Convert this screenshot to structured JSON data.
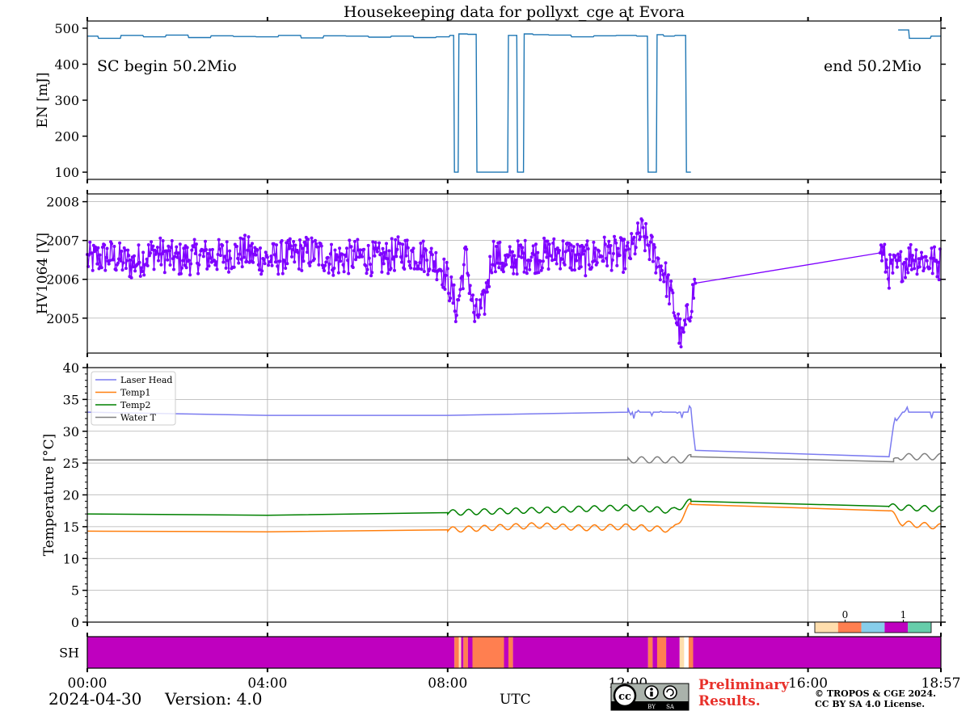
{
  "figure": {
    "title": "Housekeeping data for pollyxt_cge at Evora",
    "date": "2024-04-30",
    "version_label": "Version: 4.0",
    "x_label": "UTC",
    "x_ticks": [
      "00:00",
      "04:00",
      "08:00",
      "12:00",
      "16:00",
      "18:57"
    ],
    "preliminary_line1": "Preliminary",
    "preliminary_line2": "Results.",
    "copyright_line1": "© TROPOS & CGE 2024.",
    "copyright_line2": "CC BY SA 4.0 License.",
    "license_badge": "cc-by-sa-badge"
  },
  "chart_data": [
    {
      "type": "line",
      "panel": "energy",
      "ylabel": "EN [mJ]",
      "xlim_hours": [
        0,
        18.95
      ],
      "ylim": [
        80,
        520
      ],
      "yticks": [
        100,
        200,
        300,
        400,
        500
      ],
      "color": "#1f77b4",
      "annotation_left": "SC begin 50.2Mio",
      "annotation_right": "end 50.2Mio",
      "series": [
        {
          "name": "EN",
          "x": [
            0.0,
            0.5,
            1.0,
            1.5,
            2.0,
            2.5,
            3.0,
            3.5,
            4.0,
            4.5,
            5.0,
            5.5,
            6.0,
            6.5,
            7.0,
            7.5,
            8.0,
            8.1,
            8.2,
            8.3,
            8.6,
            8.7,
            8.8,
            8.9,
            9.0,
            9.2,
            9.5,
            9.6,
            9.8,
            10.0,
            10.5,
            11.0,
            11.5,
            12.0,
            12.4,
            12.5,
            12.6,
            12.7,
            12.9,
            13.2,
            13.4,
            17.8,
            18.0,
            18.5,
            18.95
          ],
          "y": [
            478,
            472,
            480,
            476,
            481,
            474,
            479,
            477,
            476,
            480,
            473,
            479,
            478,
            475,
            478,
            474,
            476,
            480,
            100,
            484,
            483,
            100,
            100,
            100,
            100,
            100,
            480,
            100,
            484,
            482,
            481,
            476,
            479,
            480,
            478,
            100,
            100,
            482,
            478,
            480,
            100,
            null,
            495,
            472,
            478
          ]
        }
      ]
    },
    {
      "type": "scatter",
      "panel": "hv1064",
      "ylabel": "HV1064 [V]",
      "xlim_hours": [
        0,
        18.95
      ],
      "ylim": [
        2004.1,
        2008.2
      ],
      "yticks": [
        2005,
        2006,
        2007,
        2008
      ],
      "color": "#7f00ff",
      "series": [
        {
          "name": "HV1064",
          "x": [
            0.0,
            0.5,
            1.0,
            1.5,
            2.0,
            2.5,
            3.0,
            3.5,
            4.0,
            4.5,
            5.0,
            5.5,
            6.0,
            6.5,
            7.0,
            7.5,
            7.8,
            8.0,
            8.2,
            8.4,
            8.6,
            8.8,
            9.0,
            9.3,
            9.6,
            10.0,
            10.5,
            11.0,
            11.5,
            12.0,
            12.3,
            12.5,
            12.8,
            13.0,
            13.2,
            13.5,
            17.6,
            17.8,
            18.0,
            18.3,
            18.6,
            18.95
          ],
          "y": [
            2006.5,
            2006.6,
            2006.4,
            2006.7,
            2006.5,
            2006.6,
            2006.6,
            2006.7,
            2006.5,
            2006.6,
            2006.7,
            2006.5,
            2006.6,
            2006.5,
            2006.7,
            2006.6,
            2006.4,
            2006.0,
            2005.2,
            2006.6,
            2005.0,
            2005.3,
            2006.7,
            2006.4,
            2006.6,
            2006.6,
            2006.7,
            2006.5,
            2006.7,
            2006.6,
            2007.2,
            2006.8,
            2006.2,
            2005.4,
            2004.4,
            2005.9,
            2006.8,
            2006.2,
            2006.3,
            2006.6,
            2006.5,
            2006.4
          ]
        }
      ]
    },
    {
      "type": "line",
      "panel": "temperature",
      "ylabel": "Temperature [°C]",
      "xlim_hours": [
        0,
        18.95
      ],
      "ylim": [
        0,
        40
      ],
      "yticks": [
        0,
        5,
        10,
        15,
        20,
        25,
        30,
        35,
        40
      ],
      "legend_position": "top-left",
      "series": [
        {
          "name": "Laser Head",
          "color": "#7b7bf0",
          "x": [
            0,
            4,
            8,
            12,
            13.4,
            13.5,
            17.8,
            17.9,
            18.1,
            18.95
          ],
          "y": [
            33,
            32.5,
            32.5,
            33,
            33,
            27,
            26,
            31,
            33,
            33
          ]
        },
        {
          "name": "Temp1",
          "color": "#ff7f0e",
          "x": [
            0,
            4,
            8,
            10,
            11,
            12,
            13.0,
            13.4,
            17.8,
            18.1,
            18.95
          ],
          "y": [
            14.3,
            14.2,
            14.5,
            15.2,
            14.8,
            15.0,
            14.5,
            18.5,
            17.5,
            15.5,
            15.0
          ]
        },
        {
          "name": "Temp2",
          "color": "#008000",
          "x": [
            0,
            4,
            8,
            10,
            11,
            12,
            13.0,
            13.4,
            17.8,
            18.1,
            18.95
          ],
          "y": [
            17.0,
            16.8,
            17.2,
            17.6,
            17.8,
            18.0,
            17.5,
            19.0,
            18.2,
            18.0,
            17.8
          ]
        },
        {
          "name": "Water T",
          "color": "#808080",
          "x": [
            0,
            4,
            8,
            12,
            13.3,
            13.4,
            17.9,
            18.0,
            18.95
          ],
          "y": [
            25.5,
            25.5,
            25.5,
            25.5,
            25.5,
            26,
            25.2,
            26,
            26
          ]
        }
      ]
    },
    {
      "type": "heatmap",
      "panel": "sh",
      "ylabel": "SH",
      "colorbar_ticks": [
        "0",
        "1"
      ],
      "colors": [
        "#ffdead",
        "#ff7f50",
        "#87ceeb",
        "#bf00bf",
        "#66cdaa"
      ],
      "segments": [
        {
          "start": 0.0,
          "end": 8.15,
          "color": "#bf00bf"
        },
        {
          "start": 8.15,
          "end": 8.25,
          "color": "#ff7f50"
        },
        {
          "start": 8.25,
          "end": 8.3,
          "color": "#ffdead"
        },
        {
          "start": 8.3,
          "end": 8.35,
          "color": "#bf00bf"
        },
        {
          "start": 8.35,
          "end": 8.45,
          "color": "#ff7f50"
        },
        {
          "start": 8.45,
          "end": 8.55,
          "color": "#bf00bf"
        },
        {
          "start": 8.55,
          "end": 9.25,
          "color": "#ff7f50"
        },
        {
          "start": 9.25,
          "end": 9.35,
          "color": "#bf00bf"
        },
        {
          "start": 9.35,
          "end": 9.45,
          "color": "#ff7f50"
        },
        {
          "start": 9.45,
          "end": 12.45,
          "color": "#bf00bf"
        },
        {
          "start": 12.45,
          "end": 12.55,
          "color": "#ff7f50"
        },
        {
          "start": 12.55,
          "end": 12.65,
          "color": "#bf00bf"
        },
        {
          "start": 12.65,
          "end": 12.85,
          "color": "#ff7f50"
        },
        {
          "start": 12.85,
          "end": 13.15,
          "color": "#bf00bf"
        },
        {
          "start": 13.15,
          "end": 13.25,
          "color": "#ffdead"
        },
        {
          "start": 13.25,
          "end": 13.35,
          "color": "#ffffff"
        },
        {
          "start": 13.35,
          "end": 13.45,
          "color": "#ff7f50"
        },
        {
          "start": 13.45,
          "end": 18.95,
          "color": "#bf00bf"
        }
      ]
    }
  ]
}
